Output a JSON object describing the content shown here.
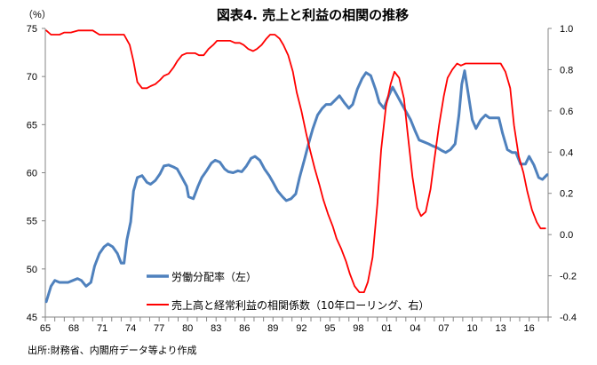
{
  "chart_data": {
    "type": "line",
    "title": "図表4. 売上と利益の相関の推移",
    "ylabel_left": "（%）",
    "source": "出所:財務省、内閣府データ等より作成",
    "xlim": [
      1965,
      2018
    ],
    "xticks": [
      1965,
      1968,
      1971,
      1974,
      1977,
      1980,
      1983,
      1986,
      1989,
      1992,
      1995,
      1998,
      2001,
      2004,
      2007,
      2010,
      2013,
      2016
    ],
    "xtick_labels": [
      "65",
      "68",
      "71",
      "74",
      "77",
      "80",
      "83",
      "86",
      "89",
      "92",
      "95",
      "98",
      "01",
      "04",
      "07",
      "10",
      "13",
      "16"
    ],
    "ylim_left": [
      45,
      75
    ],
    "yticks_left": [
      "45",
      "50",
      "55",
      "60",
      "65",
      "70",
      "75"
    ],
    "ylim_right": [
      -0.4,
      1.0
    ],
    "yticks_right": [
      "-0.4",
      "-0.2",
      "0.0",
      "0.2",
      "0.4",
      "0.6",
      "0.8",
      "1.0"
    ],
    "grid": false,
    "legend_position": "bottom-center-left",
    "series": [
      {
        "name": "労働分配率（左）",
        "axis": "left",
        "color": "#4F81BD",
        "x": [
          1965.1,
          1965.6,
          1966.0,
          1966.5,
          1967.0,
          1967.4,
          1967.9,
          1968.4,
          1968.8,
          1969.3,
          1969.8,
          1970.2,
          1970.7,
          1971.2,
          1971.6,
          1972.1,
          1972.6,
          1973.0,
          1973.3,
          1973.6,
          1974.0,
          1974.3,
          1974.7,
          1975.2,
          1975.7,
          1976.1,
          1976.6,
          1977.1,
          1977.5,
          1978.0,
          1978.5,
          1978.9,
          1979.4,
          1979.9,
          1980.1,
          1980.6,
          1981.1,
          1981.5,
          1982.0,
          1982.5,
          1982.9,
          1983.4,
          1983.9,
          1984.3,
          1984.8,
          1985.3,
          1985.7,
          1986.2,
          1986.7,
          1987.1,
          1987.6,
          1988.1,
          1988.6,
          1989.0,
          1989.5,
          1990.0,
          1990.4,
          1990.9,
          1991.4,
          1991.8,
          1992.3,
          1992.8,
          1993.2,
          1993.7,
          1994.2,
          1994.6,
          1995.1,
          1995.6,
          1996.0,
          1996.5,
          1997.0,
          1997.4,
          1997.9,
          1998.4,
          1998.8,
          1999.3,
          1999.8,
          2000.2,
          2000.7,
          2001.2,
          2001.6,
          2002.1,
          2002.6,
          2003.0,
          2003.5,
          2004.0,
          2004.4,
          2004.9,
          2005.4,
          2005.8,
          2006.3,
          2006.8,
          2007.2,
          2007.7,
          2008.2,
          2008.6,
          2008.9,
          2009.2,
          2009.5,
          2010.0,
          2010.4,
          2010.9,
          2011.4,
          2011.8,
          2012.3,
          2012.8,
          2013.2,
          2013.7,
          2014.2,
          2014.6,
          2015.1,
          2015.6,
          2016.0,
          2016.5,
          2017.0,
          2017.4,
          2017.9
        ],
        "values": [
          46.6,
          48.2,
          48.8,
          48.6,
          48.6,
          48.6,
          48.8,
          49.0,
          48.8,
          48.2,
          48.6,
          50.3,
          51.6,
          52.3,
          52.6,
          52.3,
          51.6,
          50.6,
          50.6,
          53.0,
          54.9,
          58.1,
          59.5,
          59.7,
          59.0,
          58.8,
          59.2,
          59.9,
          60.7,
          60.8,
          60.6,
          60.4,
          59.5,
          58.6,
          57.5,
          57.3,
          58.6,
          59.5,
          60.2,
          61.0,
          61.3,
          61.1,
          60.4,
          60.1,
          60.0,
          60.2,
          60.1,
          60.7,
          61.5,
          61.7,
          61.3,
          60.4,
          59.7,
          59.0,
          58.1,
          57.5,
          57.1,
          57.3,
          57.8,
          59.5,
          61.3,
          63.2,
          64.6,
          66.0,
          66.7,
          67.1,
          67.1,
          67.6,
          68.0,
          67.3,
          66.7,
          67.1,
          68.7,
          69.8,
          70.4,
          70.1,
          68.7,
          67.3,
          66.7,
          68.0,
          68.9,
          68.0,
          67.1,
          66.4,
          65.5,
          64.3,
          63.4,
          63.2,
          63.0,
          62.8,
          62.6,
          62.3,
          62.1,
          62.4,
          63.0,
          66.0,
          69.2,
          70.6,
          68.7,
          65.5,
          64.6,
          65.5,
          66.0,
          65.7,
          65.7,
          65.7,
          64.1,
          62.4,
          62.1,
          62.1,
          60.9,
          60.9,
          61.7,
          60.8,
          59.5,
          59.3,
          59.8
        ]
      },
      {
        "name": "売上高と経常利益の相関係数（10年ローリング、右）",
        "axis": "right",
        "color": "#FF0000",
        "x": [
          1965.1,
          1965.6,
          1966.0,
          1966.5,
          1967.0,
          1967.7,
          1968.5,
          1969.2,
          1970.0,
          1970.7,
          1971.4,
          1972.2,
          1972.9,
          1973.3,
          1973.9,
          1974.3,
          1974.7,
          1975.2,
          1975.7,
          1976.1,
          1976.6,
          1977.1,
          1977.5,
          1978.0,
          1978.5,
          1978.9,
          1979.4,
          1979.9,
          1980.3,
          1980.8,
          1981.2,
          1981.7,
          1982.2,
          1982.7,
          1983.1,
          1983.6,
          1984.1,
          1984.5,
          1985.0,
          1985.5,
          1985.9,
          1986.4,
          1986.9,
          1987.3,
          1987.8,
          1988.3,
          1988.7,
          1989.2,
          1989.7,
          1990.1,
          1990.6,
          1991.1,
          1991.5,
          1992.0,
          1992.5,
          1992.9,
          1993.4,
          1993.9,
          1994.3,
          1994.8,
          1995.3,
          1995.7,
          1996.2,
          1996.7,
          1997.1,
          1997.6,
          1998.1,
          1998.6,
          1999.0,
          1999.5,
          2000.0,
          2000.4,
          2000.9,
          2001.4,
          2001.8,
          2002.3,
          2002.8,
          2003.2,
          2003.7,
          2004.2,
          2004.6,
          2005.1,
          2005.6,
          2006.0,
          2006.5,
          2007.0,
          2007.4,
          2007.9,
          2008.4,
          2008.8,
          2009.3,
          2009.8,
          2010.7,
          2011.6,
          2012.6,
          2013.0,
          2013.5,
          2014.0,
          2014.4,
          2014.9,
          2015.4,
          2015.8,
          2016.3,
          2016.8,
          2017.2,
          2017.7
        ],
        "values": [
          0.99,
          0.97,
          0.97,
          0.97,
          0.98,
          0.98,
          0.99,
          0.99,
          0.99,
          0.97,
          0.97,
          0.97,
          0.97,
          0.97,
          0.92,
          0.84,
          0.74,
          0.71,
          0.71,
          0.72,
          0.73,
          0.75,
          0.77,
          0.78,
          0.81,
          0.84,
          0.87,
          0.88,
          0.88,
          0.88,
          0.87,
          0.87,
          0.9,
          0.92,
          0.94,
          0.94,
          0.94,
          0.94,
          0.93,
          0.93,
          0.92,
          0.9,
          0.89,
          0.9,
          0.92,
          0.95,
          0.97,
          0.97,
          0.95,
          0.92,
          0.87,
          0.79,
          0.69,
          0.6,
          0.49,
          0.41,
          0.32,
          0.24,
          0.17,
          0.1,
          0.04,
          -0.02,
          -0.07,
          -0.13,
          -0.19,
          -0.25,
          -0.28,
          -0.28,
          -0.23,
          -0.11,
          0.15,
          0.41,
          0.62,
          0.73,
          0.79,
          0.76,
          0.66,
          0.49,
          0.28,
          0.13,
          0.09,
          0.11,
          0.22,
          0.36,
          0.53,
          0.67,
          0.76,
          0.8,
          0.83,
          0.82,
          0.83,
          0.83,
          0.83,
          0.83,
          0.83,
          0.83,
          0.79,
          0.71,
          0.53,
          0.38,
          0.3,
          0.21,
          0.12,
          0.06,
          0.03,
          0.03
        ]
      }
    ]
  }
}
